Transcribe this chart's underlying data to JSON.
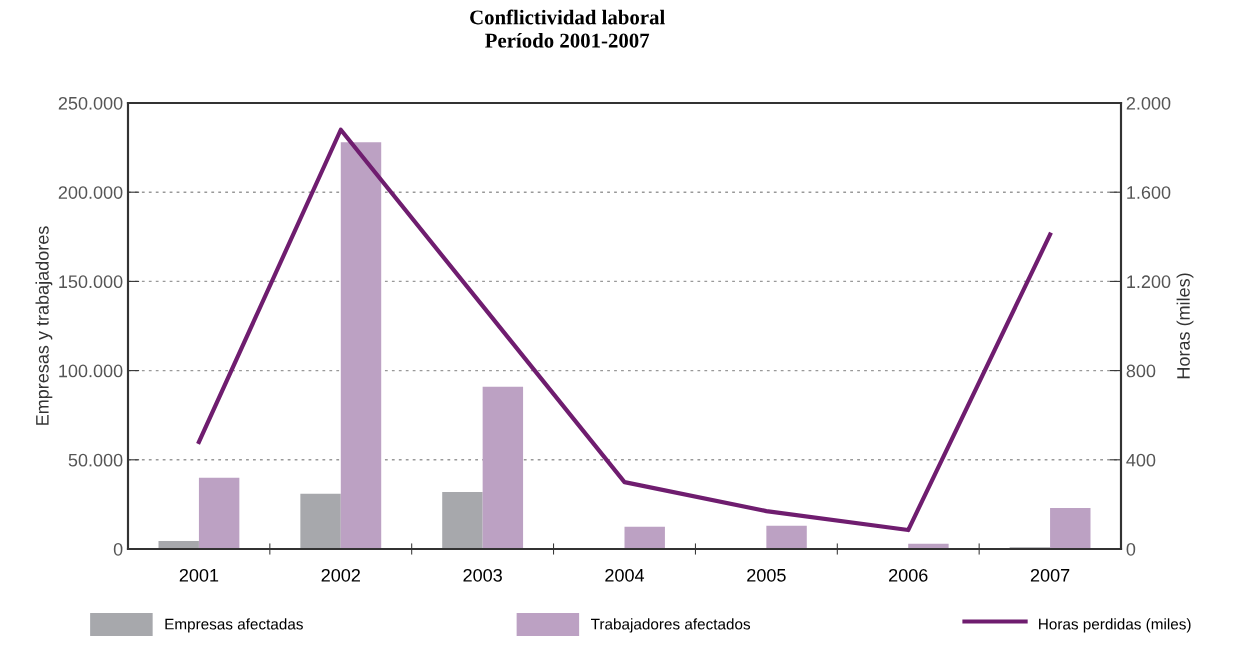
{
  "chart_data": {
    "type": "bar",
    "title": "Conflictividad laboral\nPeríodo 2001-2007",
    "categories": [
      "2001",
      "2002",
      "2003",
      "2004",
      "2005",
      "2006",
      "2007"
    ],
    "ylabel": "Empresas y trabajadores",
    "y2label": "Horas (miles)",
    "series": [
      {
        "name": "Empresas afectadas",
        "color": "#a7a8ac",
        "values": [
          4500,
          31000,
          32000,
          0,
          0,
          0,
          1000
        ]
      },
      {
        "name": "Trabajadores afectados",
        "color": "#bca1c3",
        "values": [
          40000,
          228000,
          91000,
          12500,
          13000,
          3000,
          23000
        ]
      },
      {
        "name": "Horas perdidas (miles)",
        "type": "line",
        "axis": "y2",
        "color": "#6f1d6f",
        "values": [
          480,
          1880,
          1090,
          300,
          170,
          85,
          1410
        ]
      }
    ],
    "ylim": [
      0,
      250000
    ],
    "yticks": [
      {
        "value": 0,
        "label": "0"
      },
      {
        "value": 50000,
        "label": "50.000"
      },
      {
        "value": 100000,
        "label": "100.000"
      },
      {
        "value": 150000,
        "label": "150.000"
      },
      {
        "value": 200000,
        "label": "200.000"
      },
      {
        "value": 250000,
        "label": "250.000"
      }
    ],
    "y2lim": [
      0,
      2000
    ],
    "y2ticks": [
      0,
      400,
      800,
      {
        "value": 1200,
        "label": "1.200"
      },
      {
        "value": 1600,
        "label": "1.600"
      },
      {
        "value": 2000,
        "label": "2.000"
      }
    ],
    "grid": "y",
    "legend": "bottom"
  }
}
